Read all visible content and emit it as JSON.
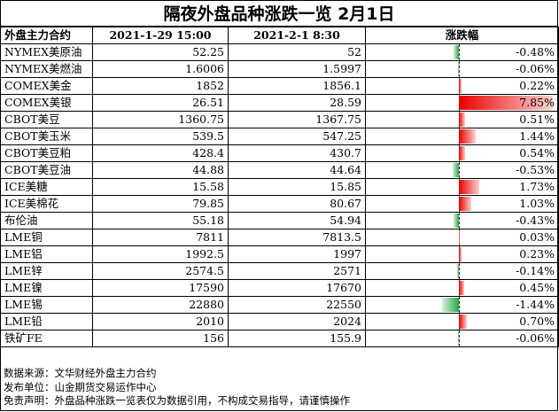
{
  "title": "隔夜外盘品种涨跌一览 2月1日",
  "headers": {
    "name": "外盘主力合约",
    "date1": "2021-1-29 15:00",
    "date2": "2021-2-1 8:30",
    "change": "涨跌幅"
  },
  "colors": {
    "up": "#e80000",
    "down": "#2aa84a"
  },
  "rows": [
    {
      "name": "NYMEX美原油",
      "v1": "52.25",
      "v2": "52",
      "pct": "-0.48%",
      "change": -0.48
    },
    {
      "name": "NYMEX美燃油",
      "v1": "1.6006",
      "v2": "1.5997",
      "pct": "-0.06%",
      "change": -0.06
    },
    {
      "name": "COMEX美金",
      "v1": "1852",
      "v2": "1856.1",
      "pct": "0.22%",
      "change": 0.22
    },
    {
      "name": "COMEX美银",
      "v1": "26.51",
      "v2": "28.59",
      "pct": "7.85%",
      "change": 7.85
    },
    {
      "name": "CBOT美豆",
      "v1": "1360.75",
      "v2": "1367.75",
      "pct": "0.51%",
      "change": 0.51
    },
    {
      "name": "CBOT美玉米",
      "v1": "539.5",
      "v2": "547.25",
      "pct": "1.44%",
      "change": 1.44
    },
    {
      "name": "CBOT美豆粕",
      "v1": "428.4",
      "v2": "430.7",
      "pct": "0.54%",
      "change": 0.54
    },
    {
      "name": "CBOT美豆油",
      "v1": "44.88",
      "v2": "44.64",
      "pct": "-0.53%",
      "change": -0.53
    },
    {
      "name": "ICE美糖",
      "v1": "15.58",
      "v2": "15.85",
      "pct": "1.73%",
      "change": 1.73
    },
    {
      "name": "ICE美棉花",
      "v1": "79.85",
      "v2": "80.67",
      "pct": "1.03%",
      "change": 1.03
    },
    {
      "name": "布伦油",
      "v1": "55.18",
      "v2": "54.94",
      "pct": "-0.43%",
      "change": -0.43
    },
    {
      "name": "LME铜",
      "v1": "7811",
      "v2": "7813.5",
      "pct": "0.03%",
      "change": 0.03
    },
    {
      "name": "LME铝",
      "v1": "1992.5",
      "v2": "1997",
      "pct": "0.23%",
      "change": 0.23
    },
    {
      "name": "LME锌",
      "v1": "2574.5",
      "v2": "2571",
      "pct": "-0.14%",
      "change": -0.14
    },
    {
      "name": "LME镍",
      "v1": "17590",
      "v2": "17670",
      "pct": "0.45%",
      "change": 0.45
    },
    {
      "name": "LME锡",
      "v1": "22880",
      "v2": "22550",
      "pct": "-1.44%",
      "change": -1.44
    },
    {
      "name": "LME铅",
      "v1": "2010",
      "v2": "2024",
      "pct": "0.70%",
      "change": 0.7
    },
    {
      "name": "铁矿FE",
      "v1": "156",
      "v2": "155.9",
      "pct": "-0.06%",
      "change": -0.06
    }
  ],
  "footer": {
    "source": "数据来源：文华财经外盘主力合约",
    "publisher": "发布单位：山金期货交易运作中心",
    "disclaimer": "免责声明：外盘品种涨跌一览表仅为数据引用，不构成交易指导，请谨慎操作"
  }
}
